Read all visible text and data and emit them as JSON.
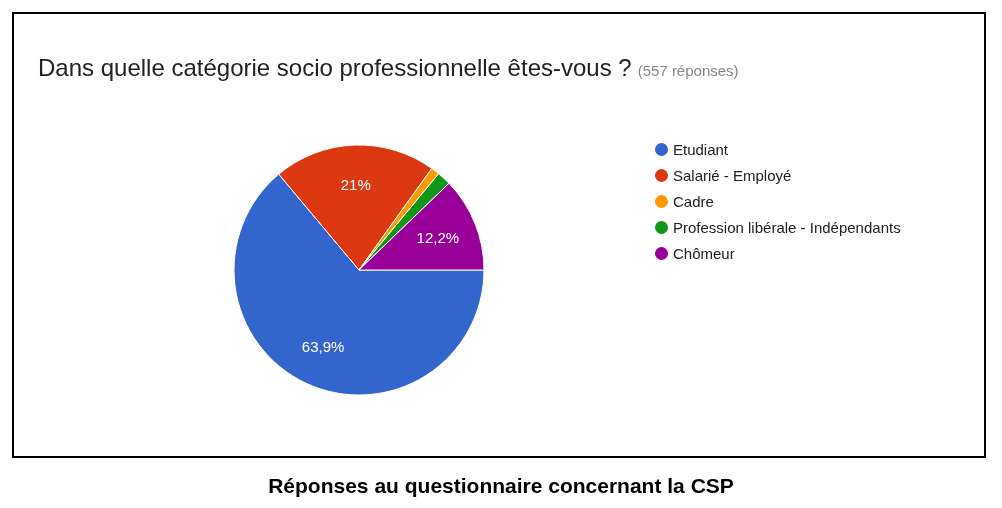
{
  "chart_data": {
    "type": "pie",
    "title": "Dans quelle catégorie socio professionnelle êtes-vous ?",
    "subtitle": "(557 réponses)",
    "categories": [
      "Etudiant",
      "Salarié - Employé",
      "Cadre",
      "Profession libérale - Indépendants",
      "Chômeur"
    ],
    "values": [
      63.9,
      21,
      1.1,
      1.8,
      12.2
    ],
    "colors": [
      "#3366cc",
      "#dc3912",
      "#ff9900",
      "#109618",
      "#990099"
    ],
    "value_labels": [
      "63,9%",
      "21%",
      null,
      null,
      "12,2%"
    ],
    "legend": "right",
    "annotations": [
      "Réponses au questionnaire concernant la CSP"
    ]
  }
}
